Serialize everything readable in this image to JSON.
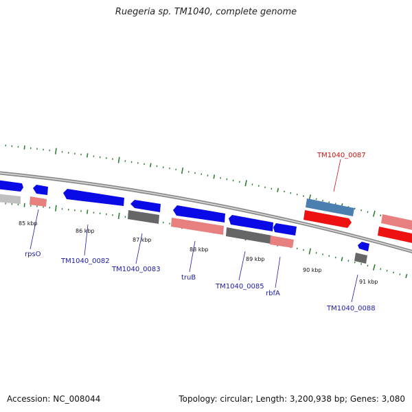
{
  "title": "Ruegeria sp. TM1040, complete genome",
  "footer": {
    "accession": "Accession: NC_008044",
    "summary": "Topology: circular; Length: 3,200,938 bp; Genes: 3,080"
  },
  "colors": {
    "backbone": "#8a8a8a",
    "tick": "#2e7d32",
    "strand_plus": "#0a0ae6",
    "strand_minus_pink": "#e88080",
    "strand_minus_gray": "#666666",
    "strand_minus_light": "#c0c0c0",
    "highlight_blue": "#4a7fb0",
    "highlight_red": "#ee1111",
    "label_default": "#1a1aa8",
    "label_highlight": "#cc1111"
  },
  "kbp_labels": [
    "85 kbp",
    "86 kbp",
    "87 kbp",
    "88 kbp",
    "89 kbp",
    "90 kbp",
    "91 kbp"
  ],
  "genes": [
    {
      "name": "",
      "track": "outer",
      "color": "strand_plus"
    },
    {
      "name": "",
      "track": "inner",
      "color": "strand_minus_light"
    },
    {
      "name": "",
      "track": "outer",
      "color": "strand_plus"
    },
    {
      "name": "rpsO",
      "track": "inner",
      "color": "strand_minus_pink"
    },
    {
      "name": "TM1040_0082",
      "track": "outer",
      "color": "strand_plus"
    },
    {
      "name": "",
      "track": "outer",
      "color": "strand_plus"
    },
    {
      "name": "TM1040_0083",
      "track": "inner",
      "color": "strand_minus_gray"
    },
    {
      "name": "",
      "track": "outer",
      "color": "strand_plus"
    },
    {
      "name": "truB",
      "track": "inner",
      "color": "strand_minus_pink"
    },
    {
      "name": "",
      "track": "outer",
      "color": "strand_plus"
    },
    {
      "name": "TM1040_0085",
      "track": "inner",
      "color": "strand_minus_gray"
    },
    {
      "name": "",
      "track": "outer",
      "color": "strand_plus"
    },
    {
      "name": "rbfA",
      "track": "inner",
      "color": "strand_minus_pink"
    },
    {
      "name": "",
      "track": "outer",
      "color": "highlight_blue"
    },
    {
      "name": "TM1040_0087",
      "track": "inner",
      "color": "highlight_red"
    },
    {
      "name": "",
      "track": "outer",
      "color": "strand_plus"
    },
    {
      "name": "TM1040_0088",
      "track": "inner",
      "color": "strand_minus_gray"
    },
    {
      "name": "",
      "track": "outer",
      "color": "strand_minus_pink"
    },
    {
      "name": "",
      "track": "inner",
      "color": "highlight_red"
    }
  ]
}
